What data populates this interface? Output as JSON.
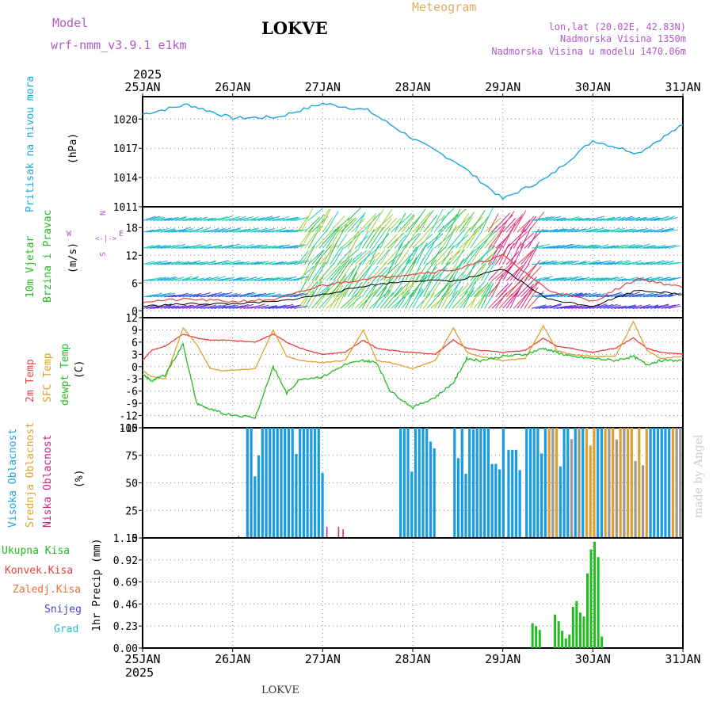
{
  "header": {
    "model_label": "Model",
    "model_name": "wrf-nmm_v3.9.1  e1km",
    "station": "LOKVE",
    "product": "Meteogram",
    "coords": "lon,lat (20.02E, 42.83N)",
    "elevation": "Nadmorska Visina 1350m",
    "model_elevation": "Nadmorska Visina u modelu 1470.06m",
    "year_top": "2025",
    "year_bottom": "2025",
    "footer_station": "LOKVE",
    "watermark": "made by Angel"
  },
  "colors": {
    "pressure": "#1ba6e0",
    "temp2m": "#e84040",
    "sfc_temp": "#e0a030",
    "dewpt": "#22bb22",
    "cloud_high": "#1a9de0",
    "cloud_mid": "#e0a030",
    "cloud_low": "#d0207a",
    "precip": "#22bb22",
    "purple": "#b05ac8",
    "grid": "#888888"
  },
  "chart_data": [
    {
      "type": "line",
      "name": "pressure",
      "title": "Pritisak na nivou mora",
      "ylabel": "(hPa)",
      "yticks": [
        1011,
        1014,
        1017,
        1020
      ],
      "ylim": [
        1011,
        1022.3
      ],
      "x": [
        0,
        0.5,
        1,
        1.5,
        2,
        2.5,
        3,
        3.5,
        4,
        4.5,
        5,
        5.5,
        6
      ],
      "series": [
        {
          "values": [
            1020.5,
            1021.5,
            1020.1,
            1020.2,
            1021.6,
            1020.9,
            1018.0,
            1015.5,
            1011.8,
            1014.0,
            1017.8,
            1016.5,
            1019.4
          ]
        }
      ]
    },
    {
      "type": "line",
      "name": "wind",
      "title_lines": [
        "10m Vjetar",
        "Brzina i Pravac"
      ],
      "ylabel": "(m/s)",
      "direction_labels": [
        "N",
        "W",
        "E",
        "S"
      ],
      "yticks": [
        0,
        6,
        12,
        18
      ],
      "ylim": [
        -1.5,
        22.5
      ],
      "x": [
        0,
        0.5,
        1,
        1.5,
        2,
        2.5,
        3,
        3.5,
        4,
        4.5,
        5,
        5.5,
        6
      ],
      "series": [
        {
          "values": [
            2.0,
            2.5,
            2.0,
            2.5,
            5.5,
            7.0,
            8.0,
            9.0,
            12.0,
            4.5,
            2.0,
            7.0,
            5.0
          ]
        },
        {
          "values": [
            1.0,
            1.5,
            1.5,
            2.0,
            3.5,
            5.5,
            6.5,
            6.5,
            9.0,
            2.5,
            1.0,
            4.5,
            3.5
          ]
        }
      ]
    },
    {
      "type": "line",
      "name": "temperature",
      "title_lines": [
        "2m Temp",
        "SFC Temp",
        "dewpt Temp"
      ],
      "ylabel": "(C)",
      "yticks": [
        -15,
        -12,
        -9,
        -6,
        -3,
        0,
        3,
        6,
        9,
        12
      ],
      "ylim": [
        -15,
        12
      ],
      "x": [
        0,
        0.1,
        0.25,
        0.45,
        0.6,
        0.75,
        0.9,
        1.25,
        1.45,
        1.6,
        1.75,
        2.0,
        2.25,
        2.45,
        2.6,
        2.75,
        3.0,
        3.25,
        3.45,
        3.6,
        3.75,
        4.0,
        4.25,
        4.45,
        4.6,
        4.75,
        5.0,
        5.25,
        5.45,
        5.6,
        5.75,
        6.0
      ],
      "series": [
        {
          "name": "2m Temp",
          "values": [
            1.5,
            4.0,
            5.0,
            8.0,
            7.0,
            6.5,
            6.5,
            6.0,
            8.0,
            6.0,
            4.5,
            3.0,
            3.5,
            6.5,
            4.5,
            4.0,
            3.5,
            3.0,
            6.5,
            4.5,
            4.0,
            3.5,
            4.0,
            7.0,
            5.0,
            4.5,
            3.5,
            4.5,
            7.0,
            4.5,
            3.5,
            3.0
          ]
        },
        {
          "name": "SFC Temp",
          "values": [
            -1.0,
            -2.5,
            -3.0,
            9.5,
            5.5,
            -0.5,
            -1.0,
            -0.5,
            9.0,
            2.5,
            1.5,
            1.0,
            1.5,
            9.0,
            1.5,
            1.0,
            -0.5,
            1.5,
            9.5,
            3.5,
            2.5,
            1.5,
            2.0,
            10.0,
            4.0,
            3.0,
            2.5,
            2.5,
            11.0,
            4.0,
            2.0,
            2.5
          ]
        },
        {
          "name": "dewpt Temp",
          "values": [
            -2.0,
            -3.5,
            -2.0,
            5.5,
            -9.0,
            -10.5,
            -11.5,
            -12.5,
            0.0,
            -6.5,
            -3.0,
            -2.5,
            0.5,
            1.5,
            1.0,
            -6.0,
            -10.0,
            -7.5,
            -4.0,
            2.0,
            1.5,
            2.5,
            3.0,
            4.5,
            3.5,
            2.5,
            2.0,
            1.5,
            2.5,
            0.5,
            1.5,
            1.5
          ]
        }
      ]
    },
    {
      "type": "bar",
      "name": "cloud",
      "title_lines": [
        "Visoka Oblacnost",
        "Srednja Oblacnost",
        "Niska Oblacnost"
      ],
      "ylabel": "(%)",
      "yticks": [
        0,
        25,
        50,
        75,
        100
      ],
      "ylim": [
        0,
        100
      ],
      "groups": [
        {
          "series": "Visoka Oblacnost",
          "x_range": [
            1.15,
            2.0
          ],
          "value": 100
        },
        {
          "series": "Visoka Oblacnost",
          "x_range": [
            2.85,
            3.25
          ],
          "value": 100
        },
        {
          "series": "Visoka Oblacnost",
          "x_range": [
            3.45,
            4.0
          ],
          "value": 100
        },
        {
          "series": "Visoka Oblacnost",
          "x_range": [
            4.05,
            4.2
          ],
          "value": 80
        },
        {
          "series": "Visoka Oblacnost",
          "x_range": [
            4.25,
            6.0
          ],
          "value": 100
        }
      ]
    },
    {
      "type": "bar",
      "name": "precip",
      "title_lines": [
        "Ukupna Kisa",
        "Konvek.Kisa",
        "Zaledj.Kisa",
        "Snijeg",
        "Grad"
      ],
      "ylabel": "1hr Precip (mm)",
      "yticks": [
        0,
        0.23,
        0.46,
        0.69,
        0.92,
        1.15
      ],
      "ylim": [
        0,
        1.15
      ],
      "x": [
        4.33,
        4.37,
        4.41,
        4.58,
        4.62,
        4.66,
        4.7,
        4.74,
        4.78,
        4.82,
        4.86,
        4.9,
        4.94,
        4.98,
        5.02,
        5.06,
        5.1
      ],
      "values": [
        0.26,
        0.23,
        0.19,
        0.35,
        0.28,
        0.18,
        0.1,
        0.14,
        0.43,
        0.49,
        0.37,
        0.33,
        0.78,
        1.03,
        1.11,
        0.95,
        0.12
      ]
    }
  ],
  "x_axis": {
    "ticks": [
      "25JAN",
      "26JAN",
      "27JAN",
      "28JAN",
      "29JAN",
      "30JAN",
      "31JAN"
    ]
  }
}
